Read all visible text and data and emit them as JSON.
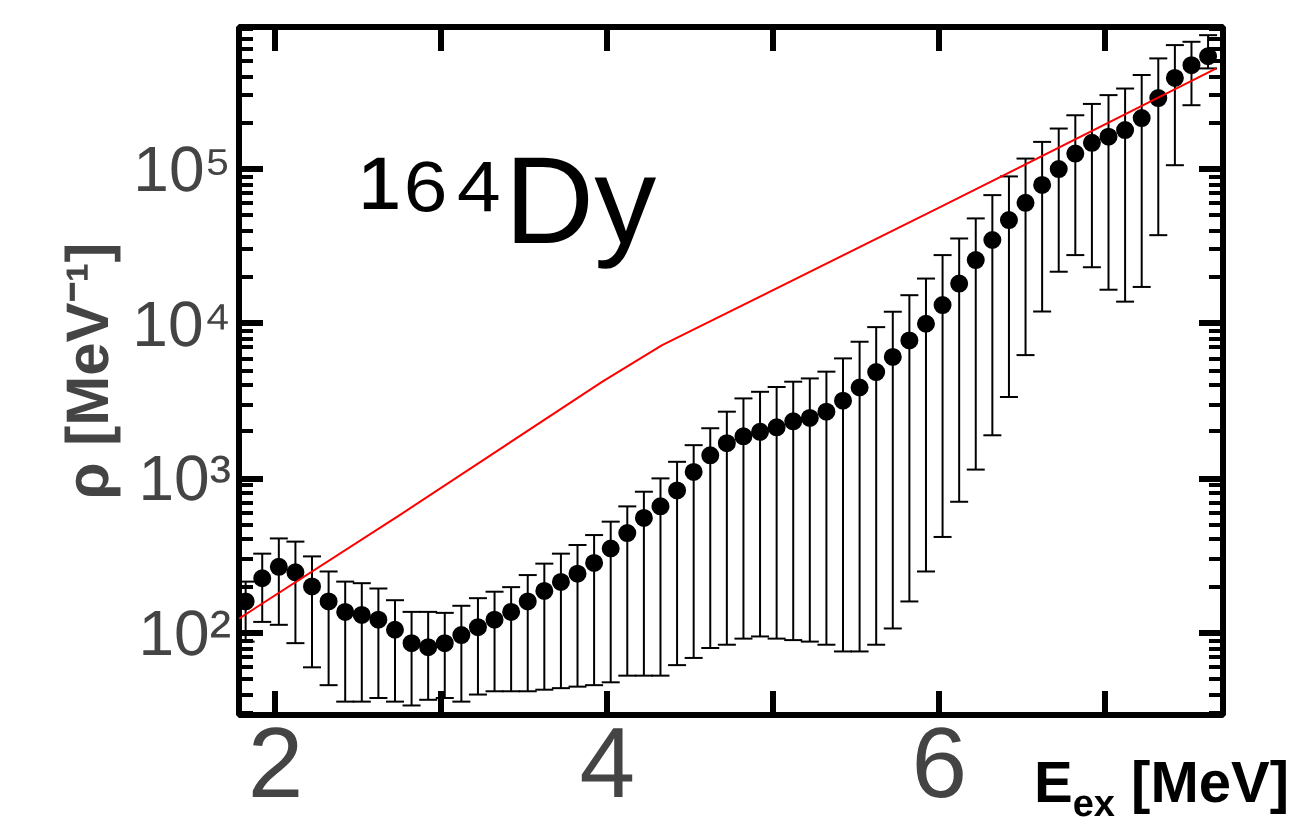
{
  "chart_data": {
    "type": "scatter",
    "xlabel": "E$_{ex}$ [MeV]",
    "ylabel": "ρ [MeV⁻¹]",
    "annotations": [
      "¹⁶⁴Dy"
    ],
    "xlim": [
      1.78,
      7.71
    ],
    "ylim": [
      29.5,
      830000
    ],
    "log": "y",
    "grid": false,
    "xticks": [
      2,
      {
        "value": 3,
        "label": null
      },
      4,
      {
        "value": 5,
        "label": null
      },
      6,
      {
        "value": 7,
        "label": null
      }
    ],
    "yticks": [
      {
        "value": 100,
        "label": "10²"
      },
      {
        "value": 1000,
        "label": "10³"
      },
      {
        "value": 10000,
        "label": "10⁴"
      },
      {
        "value": 100000,
        "label": "10⁵"
      }
    ],
    "line_style": "solid",
    "series": [
      {
        "color": "#000000",
        "marker": "circle",
        "x": [
          1.82,
          1.92,
          2.02,
          2.12,
          2.22,
          2.32,
          2.42,
          2.52,
          2.62,
          2.72,
          2.82,
          2.92,
          3.02,
          3.12,
          3.22,
          3.32,
          3.42,
          3.52,
          3.62,
          3.72,
          3.82,
          3.92,
          4.02,
          4.12,
          4.22,
          4.32,
          4.42,
          4.52,
          4.62,
          4.72,
          4.82,
          4.92,
          5.02,
          5.12,
          5.22,
          5.32,
          5.42,
          5.52,
          5.62,
          5.72,
          5.82,
          5.92,
          6.02,
          6.12,
          6.22,
          6.32,
          6.42,
          6.52,
          6.62,
          6.72,
          6.82,
          6.92,
          7.02,
          7.12,
          7.22,
          7.32,
          7.42,
          7.52,
          7.62
        ],
        "values": [
          160,
          226,
          268,
          247,
          200,
          160,
          137,
          131,
          122,
          105,
          86,
          81,
          86,
          97,
          109,
          122,
          137,
          160,
          187,
          214,
          242,
          284,
          352,
          443,
          555,
          660,
          836,
          1100,
          1410,
          1690,
          1870,
          2000,
          2140,
          2340,
          2460,
          2700,
          3180,
          3870,
          4870,
          6100,
          7800,
          10000,
          13200,
          18200,
          25800,
          34800,
          46800,
          60500,
          79000,
          100000,
          126000,
          148000,
          162000,
          179000,
          214000,
          288000,
          389000,
          470000,
          537000
        ],
        "errors": [
          [
            88,
            215
          ],
          [
            118,
            326
          ],
          [
            113,
            409
          ],
          [
            86,
            390
          ],
          [
            60,
            313
          ],
          [
            46,
            250
          ],
          [
            36,
            215
          ],
          [
            36,
            210
          ],
          [
            38,
            194
          ],
          [
            36,
            163
          ],
          [
            34,
            137
          ],
          [
            37,
            137
          ],
          [
            38,
            135
          ],
          [
            36,
            150
          ],
          [
            40,
            168
          ],
          [
            42,
            185
          ],
          [
            42,
            198
          ],
          [
            42,
            237
          ],
          [
            43,
            281
          ],
          [
            44,
            326
          ],
          [
            45,
            371
          ],
          [
            46,
            430
          ],
          [
            48,
            525
          ],
          [
            53,
            659
          ],
          [
            53,
            820
          ],
          [
            53,
            1000
          ],
          [
            62,
            1280
          ],
          [
            69,
            1640
          ],
          [
            80,
            2110
          ],
          [
            84,
            2700
          ],
          [
            92,
            3290
          ],
          [
            95,
            3630
          ],
          [
            92,
            3900
          ],
          [
            90,
            4220
          ],
          [
            88,
            4430
          ],
          [
            84,
            4900
          ],
          [
            76,
            5970
          ],
          [
            76,
            7650
          ],
          [
            84,
            9510
          ],
          [
            107,
            11960
          ],
          [
            160,
            15300
          ],
          [
            250,
            19600
          ],
          [
            418,
            27800
          ],
          [
            706,
            35600
          ],
          [
            1140,
            48000
          ],
          [
            1900,
            67900
          ],
          [
            3360,
            89700
          ],
          [
            6270,
            117000
          ],
          [
            12000,
            150000
          ],
          [
            21700,
            183000
          ],
          [
            27800,
            223000
          ],
          [
            23200,
            264000
          ],
          [
            16600,
            301000
          ],
          [
            13900,
            332000
          ],
          [
            17300,
            406000
          ],
          [
            37400,
            520000
          ],
          [
            106000,
            634000
          ],
          [
            259000,
            666000
          ],
          [
            448000,
            735000
          ]
        ]
      },
      {
        "type": "line",
        "color": "#ff0000",
        "marker": "none",
        "x": [
          1.78,
          2.76,
          3.97,
          4.33,
          5.99,
          7.67
        ],
        "values": [
          124,
          590,
          4220,
          7280,
          55700,
          448000
        ]
      }
    ]
  }
}
